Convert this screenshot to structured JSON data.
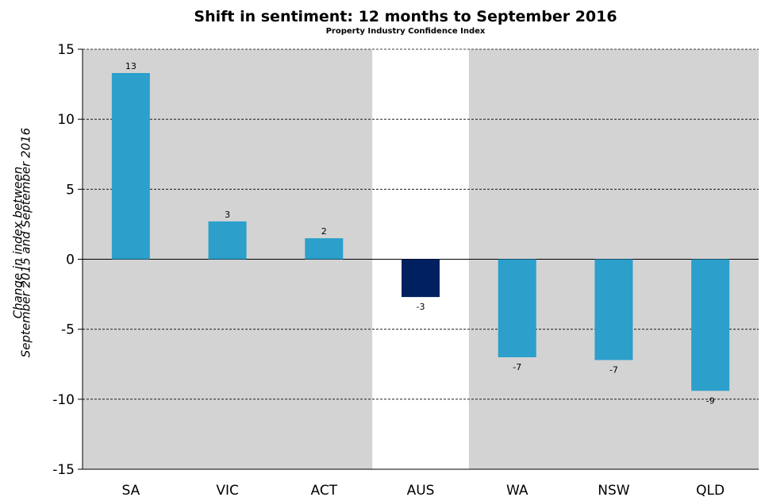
{
  "chart_data": {
    "type": "bar",
    "title": "Shift in sentiment: 12 months to September 2016",
    "subtitle": "Property Industry Confidence Index",
    "ylabel_lines": [
      "Change in index between",
      "September 2015 and September 2016"
    ],
    "xlabel": "",
    "categories": [
      "SA",
      "VIC",
      "ACT",
      "AUS",
      "WA",
      "NSW",
      "QLD"
    ],
    "values": [
      13.3,
      2.7,
      1.5,
      -2.7,
      -7.0,
      -7.2,
      -9.4
    ],
    "data_labels": [
      "13",
      "3",
      "2",
      "-3",
      "-7",
      "-7",
      "-9"
    ],
    "ylim": [
      -15,
      15
    ],
    "yticks": [
      15,
      10,
      5,
      0,
      -5,
      -10,
      -15
    ],
    "ytick_labels": [
      "15",
      "10",
      "5",
      "0",
      "-5",
      "-10",
      "-15"
    ],
    "highlight_category": "AUS",
    "grid": "horizontal dashed",
    "legend": "none",
    "colors": {
      "bar": "#2c9fcb",
      "highlight_bar": "#002060",
      "panel_background": "#d3d3d3",
      "highlight_background": "#ffffff"
    }
  }
}
